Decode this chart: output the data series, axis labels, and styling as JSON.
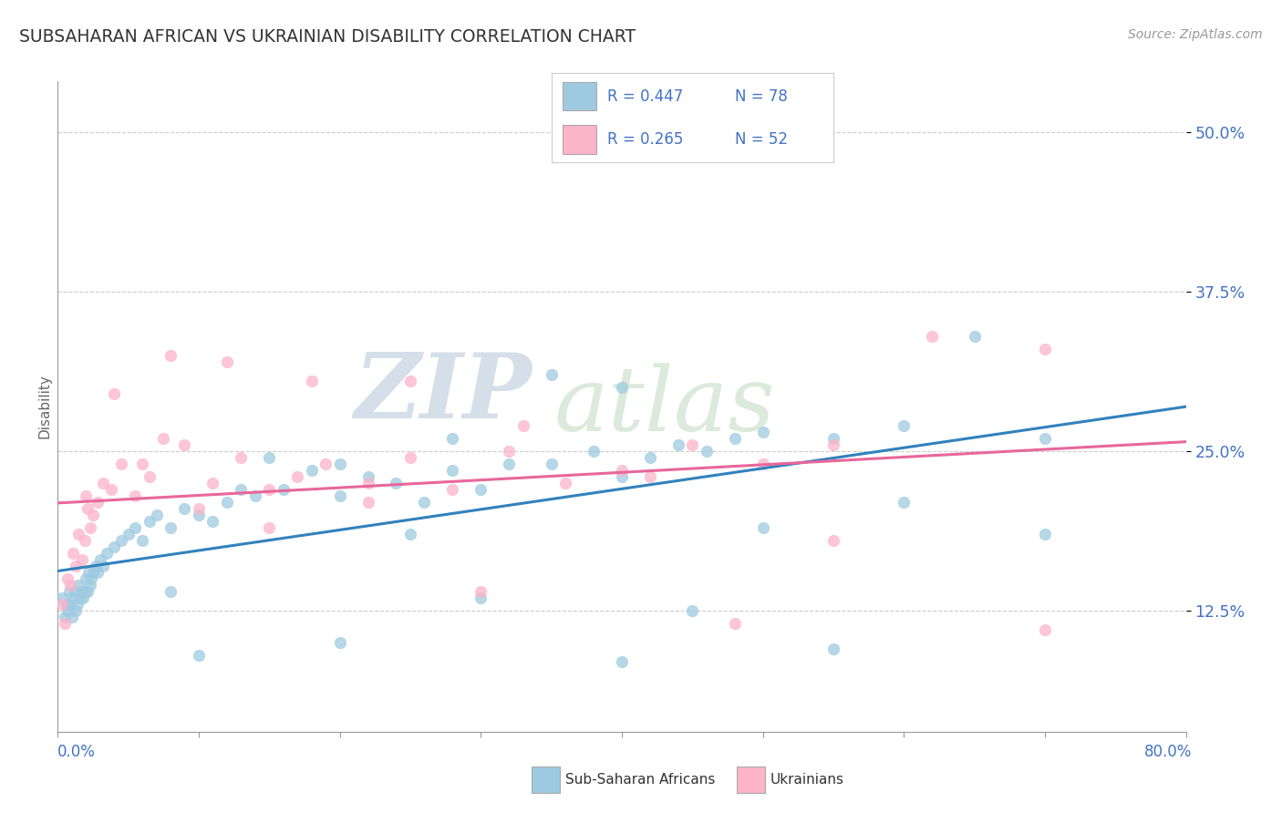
{
  "title": "SUBSAHARAN AFRICAN VS UKRAINIAN DISABILITY CORRELATION CHART",
  "source": "Source: ZipAtlas.com",
  "xmin": 0.0,
  "xmax": 80.0,
  "ymin": 3.0,
  "ymax": 54.0,
  "yticks": [
    12.5,
    25.0,
    37.5,
    50.0
  ],
  "ytick_labels": [
    "12.5%",
    "25.0%",
    "37.5%",
    "50.0%"
  ],
  "legend_text1": "R = 0.447   N = 78",
  "legend_text2": "R = 0.265   N = 52",
  "legend_label1": "Sub-Saharan Africans",
  "legend_label2": "Ukrainians",
  "blue_color": "#9ecae1",
  "pink_color": "#fbb4c9",
  "blue_line_color": "#3182bd",
  "pink_line_color": "#e8679a",
  "ylabel": "Disability",
  "title_color": "#333333",
  "axis_label_color": "#4472c4",
  "watermark_zip": "ZIP",
  "watermark_atlas": "atlas",
  "blue_scatter_x": [
    0.3,
    0.5,
    0.6,
    0.7,
    0.8,
    0.9,
    1.0,
    1.1,
    1.2,
    1.3,
    1.4,
    1.5,
    1.6,
    1.7,
    1.8,
    1.9,
    2.0,
    2.1,
    2.2,
    2.3,
    2.4,
    2.5,
    2.7,
    2.8,
    3.0,
    3.2,
    3.5,
    4.0,
    4.5,
    5.0,
    5.5,
    6.0,
    6.5,
    7.0,
    8.0,
    9.0,
    10.0,
    11.0,
    12.0,
    13.0,
    14.0,
    16.0,
    18.0,
    20.0,
    22.0,
    24.0,
    26.0,
    28.0,
    30.0,
    32.0,
    35.0,
    38.0,
    40.0,
    42.0,
    44.0,
    46.0,
    48.0,
    50.0,
    55.0,
    60.0,
    65.0,
    70.0,
    35.0,
    40.0,
    28.0,
    15.0,
    20.0,
    50.0,
    60.0,
    70.0,
    8.0,
    25.0,
    30.0,
    45.0,
    20.0,
    10.0,
    40.0,
    55.0
  ],
  "blue_scatter_y": [
    13.5,
    12.0,
    13.0,
    12.5,
    14.0,
    13.0,
    12.0,
    13.5,
    14.0,
    12.5,
    13.0,
    14.5,
    13.5,
    14.0,
    13.5,
    14.0,
    15.0,
    14.0,
    15.5,
    14.5,
    15.0,
    15.5,
    16.0,
    15.5,
    16.5,
    16.0,
    17.0,
    17.5,
    18.0,
    18.5,
    19.0,
    18.0,
    19.5,
    20.0,
    19.0,
    20.5,
    20.0,
    19.5,
    21.0,
    22.0,
    21.5,
    22.0,
    23.5,
    24.0,
    23.0,
    22.5,
    21.0,
    23.5,
    22.0,
    24.0,
    24.0,
    25.0,
    23.0,
    24.5,
    25.5,
    25.0,
    26.0,
    26.5,
    26.0,
    27.0,
    34.0,
    26.0,
    31.0,
    30.0,
    26.0,
    24.5,
    21.5,
    19.0,
    21.0,
    18.5,
    14.0,
    18.5,
    13.5,
    12.5,
    10.0,
    9.0,
    8.5,
    9.5
  ],
  "pink_scatter_x": [
    0.3,
    0.5,
    0.7,
    0.9,
    1.1,
    1.3,
    1.5,
    1.7,
    1.9,
    2.1,
    2.3,
    2.5,
    2.8,
    3.2,
    3.8,
    4.5,
    5.5,
    6.5,
    7.5,
    9.0,
    11.0,
    13.0,
    15.0,
    17.0,
    19.0,
    22.0,
    25.0,
    28.0,
    32.0,
    36.0,
    40.0,
    45.0,
    50.0,
    55.0,
    62.0,
    70.0,
    4.0,
    8.0,
    12.0,
    18.0,
    25.0,
    33.0,
    42.0,
    55.0,
    70.0,
    2.0,
    6.0,
    10.0,
    15.0,
    22.0,
    30.0,
    48.0
  ],
  "pink_scatter_y": [
    13.0,
    11.5,
    15.0,
    14.5,
    17.0,
    16.0,
    18.5,
    16.5,
    18.0,
    20.5,
    19.0,
    20.0,
    21.0,
    22.5,
    22.0,
    24.0,
    21.5,
    23.0,
    26.0,
    25.5,
    22.5,
    24.5,
    22.0,
    23.0,
    24.0,
    22.5,
    24.5,
    22.0,
    25.0,
    22.5,
    23.5,
    25.5,
    24.0,
    25.5,
    34.0,
    33.0,
    29.5,
    32.5,
    32.0,
    30.5,
    30.5,
    27.0,
    23.0,
    18.0,
    11.0,
    21.5,
    24.0,
    20.5,
    19.0,
    21.0,
    14.0,
    11.5
  ]
}
